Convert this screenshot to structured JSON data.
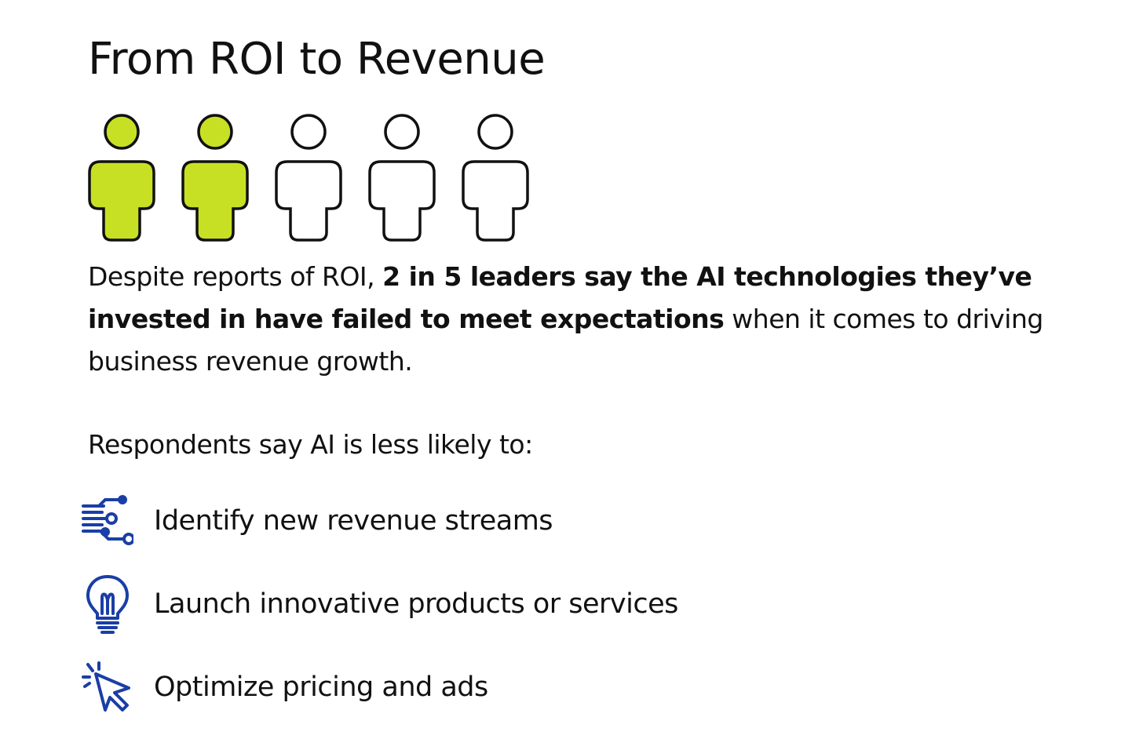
{
  "title": "From ROI to Revenue",
  "people_icons": {
    "filled": 2,
    "total": 5,
    "fill_color": "#c8e024",
    "empty_color": "#ffffff",
    "outline_color": "#111111"
  },
  "summary": {
    "lead": "Despite reports of ROI, ",
    "emphasis": "2 in 5 leaders say the AI technologies they’ve invested in have failed to meet expectations",
    "tail": " when it comes to driving business revenue growth."
  },
  "list_intro": "Respondents say AI is less likely to:",
  "accent_color": "#1a3ea6",
  "items": [
    {
      "icon": "circuit-icon",
      "label": "Identify new revenue streams"
    },
    {
      "icon": "lightbulb-icon",
      "label": "Launch innovative products or services"
    },
    {
      "icon": "cursor-click-icon",
      "label": "Optimize pricing and ads"
    }
  ]
}
